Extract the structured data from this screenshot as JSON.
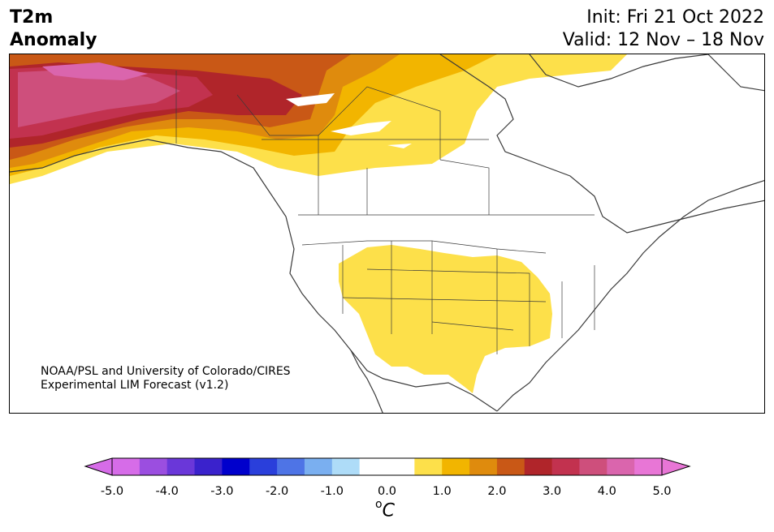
{
  "header": {
    "title_line1": "T2m",
    "title_line2": "Anomaly",
    "init": "Init: Fri 21 Oct 2022",
    "valid": "Valid: 12 Nov – 18 Nov"
  },
  "credit": {
    "line1": "NOAA/PSL and University of Colorado/CIRES",
    "line2": "Experimental LIM Forecast (v1.2)"
  },
  "colorbar": {
    "ticks": [
      "-5.0",
      "-4.0",
      "-3.0",
      "-2.0",
      "-1.0",
      "0.0",
      "1.0",
      "2.0",
      "3.0",
      "4.0",
      "5.0"
    ],
    "unit_sup": "o",
    "unit": "C",
    "colors": [
      "#d66ce8",
      "#9b4ee0",
      "#6a37d9",
      "#3a22cc",
      "#0000cc",
      "#2a3fdb",
      "#4e74e6",
      "#7aaff0",
      "#aedcf8",
      "#ffffff",
      "#ffffff",
      "#fde04a",
      "#f2b500",
      "#df8b0d",
      "#c95816",
      "#b0252a",
      "#c2324f",
      "#ce4f7c",
      "#da65ad",
      "#e876d6"
    ],
    "under_color": "#e07fe8",
    "over_color": "#e876d6"
  },
  "map": {
    "colors": {
      "light_yellow": "#fde04a",
      "gold": "#f2b500",
      "orange": "#df8b0d",
      "dark_orange": "#c95816",
      "red": "#b0252a",
      "crimson": "#c2324f",
      "pink": "#ce4f7c",
      "hot_pink": "#da65ad",
      "coast": "#3a3a3a"
    }
  }
}
